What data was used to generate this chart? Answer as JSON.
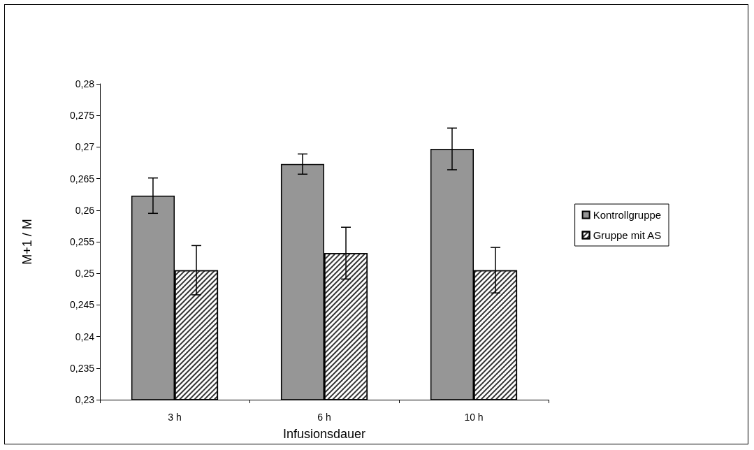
{
  "chart_data": {
    "type": "bar",
    "xlabel": "Infusionsdauer",
    "ylabel": "M+1 / M",
    "categories": [
      "3 h",
      "6 h",
      "10 h"
    ],
    "series": [
      {
        "name": "Kontrollgruppe",
        "color": "#969696",
        "values": [
          0.2623,
          0.2673,
          0.2697
        ],
        "errors": [
          0.0028,
          0.0016,
          0.0033
        ]
      },
      {
        "name": "Gruppe mit AS",
        "color": "#ffffff",
        "values": [
          0.2505,
          0.2532,
          0.2505
        ],
        "errors": [
          0.0039,
          0.0041,
          0.0036
        ]
      }
    ],
    "ylim": [
      0.23,
      0.28
    ],
    "yticks": [
      {
        "value": 0.23,
        "label": "0,23"
      },
      {
        "value": 0.235,
        "label": "0,235"
      },
      {
        "value": 0.24,
        "label": "0,24"
      },
      {
        "value": 0.245,
        "label": "0,245"
      },
      {
        "value": 0.25,
        "label": "0,25"
      },
      {
        "value": 0.255,
        "label": "0,255"
      },
      {
        "value": 0.26,
        "label": "0,26"
      },
      {
        "value": 0.265,
        "label": "0,265"
      },
      {
        "value": 0.27,
        "label": "0,27"
      },
      {
        "value": 0.275,
        "label": "0,275"
      },
      {
        "value": 0.28,
        "label": "0,28"
      }
    ],
    "grid": false,
    "legend": "right"
  }
}
